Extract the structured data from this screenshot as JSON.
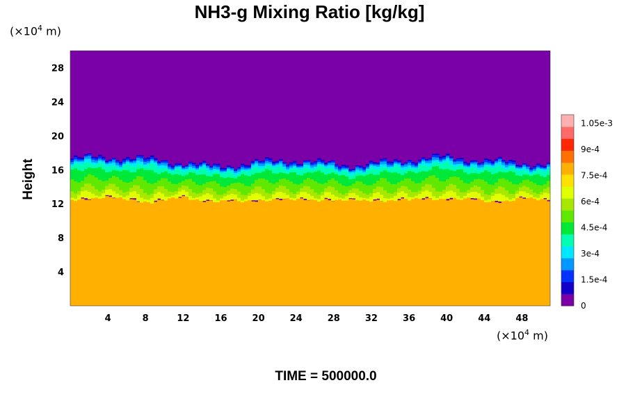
{
  "chart_data": {
    "type": "heatmap",
    "title": "NH3-g Mixing Ratio [kg/kg]",
    "ylabel": "Height",
    "x_unit": {
      "prefix": "(×10",
      "exponent": "4",
      "suffix": " m)"
    },
    "y_unit": {
      "prefix": "(×10",
      "exponent": "4",
      "suffix": " m)"
    },
    "xlim": [
      0,
      51
    ],
    "ylim": [
      0,
      30
    ],
    "x_ticks": [
      4,
      8,
      12,
      16,
      20,
      24,
      28,
      32,
      36,
      40,
      44,
      48
    ],
    "y_ticks": [
      4,
      8,
      12,
      16,
      20,
      24,
      28
    ],
    "colorbar": {
      "min": 0,
      "max": 0.0011,
      "tick_values": [
        0,
        0.00015,
        0.0003,
        0.00045,
        0.0006,
        0.00075,
        0.0009,
        0.00105
      ],
      "tick_labels": [
        "0",
        "1.5e-4",
        "3e-4",
        "4.5e-4",
        "6e-4",
        "7.5e-4",
        "9e-4",
        "1.05e-3"
      ]
    },
    "field": {
      "lower_value": 0.00079,
      "upper_value": 0.0,
      "transition_top_km": [
        17.3,
        17.5,
        17.4,
        17.2,
        16.8,
        16.4,
        16.6,
        17.0,
        17.1,
        16.8,
        16.5,
        16.8,
        17.2,
        17.5,
        17.3,
        17.0,
        16.8,
        16.6
      ],
      "transition_bottom_km": [
        12.5,
        12.8,
        12.5,
        12.3,
        12.7,
        12.4,
        12.2,
        12.6,
        12.4,
        12.6,
        12.3,
        12.5,
        12.4,
        12.7,
        12.5,
        12.3,
        12.6,
        12.4
      ],
      "palette": [
        "#7a00a8",
        "#1300c8",
        "#0033ff",
        "#0099ff",
        "#00e8ff",
        "#00ffb0",
        "#00e838",
        "#60e800",
        "#a8e800",
        "#e0ff00",
        "#ffe000",
        "#ffb000",
        "#ff7000",
        "#ff2800",
        "#ff6a6a",
        "#ffb0b0"
      ]
    },
    "time_label": "TIME = 500000.0"
  }
}
